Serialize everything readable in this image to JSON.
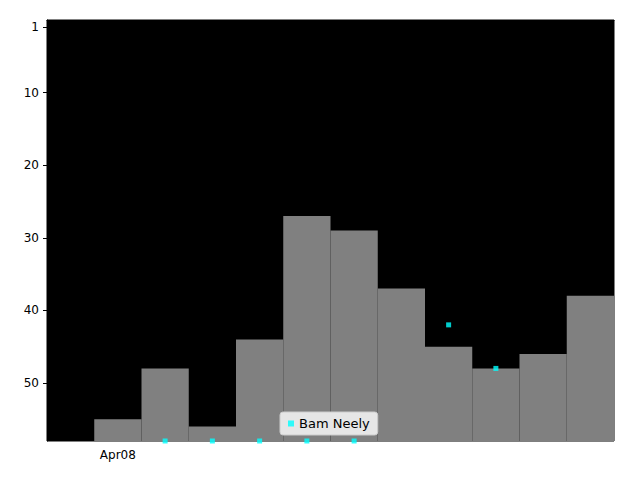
{
  "chart_data": {
    "type": "scatter",
    "categories": [
      null,
      "Apr08",
      null,
      null,
      null,
      null,
      null,
      null,
      null,
      null,
      null,
      null
    ],
    "series": [
      {
        "type": "bar",
        "color": "#808080",
        "values": [
          null,
          55,
          48,
          56,
          44,
          27,
          29,
          37,
          45,
          48,
          46,
          38
        ]
      },
      {
        "name": "Bam Neely",
        "type": "scatter",
        "color": "#00ffff",
        "marker": "square",
        "values": [
          null,
          null,
          58,
          58,
          58,
          58,
          58,
          null,
          42,
          48,
          null,
          null
        ]
      }
    ],
    "ylim": [
      0,
      58
    ],
    "yticks": [
      1,
      10,
      20,
      30,
      40,
      50
    ],
    "inverted_y": true,
    "grid": false,
    "legend": "lower center"
  }
}
